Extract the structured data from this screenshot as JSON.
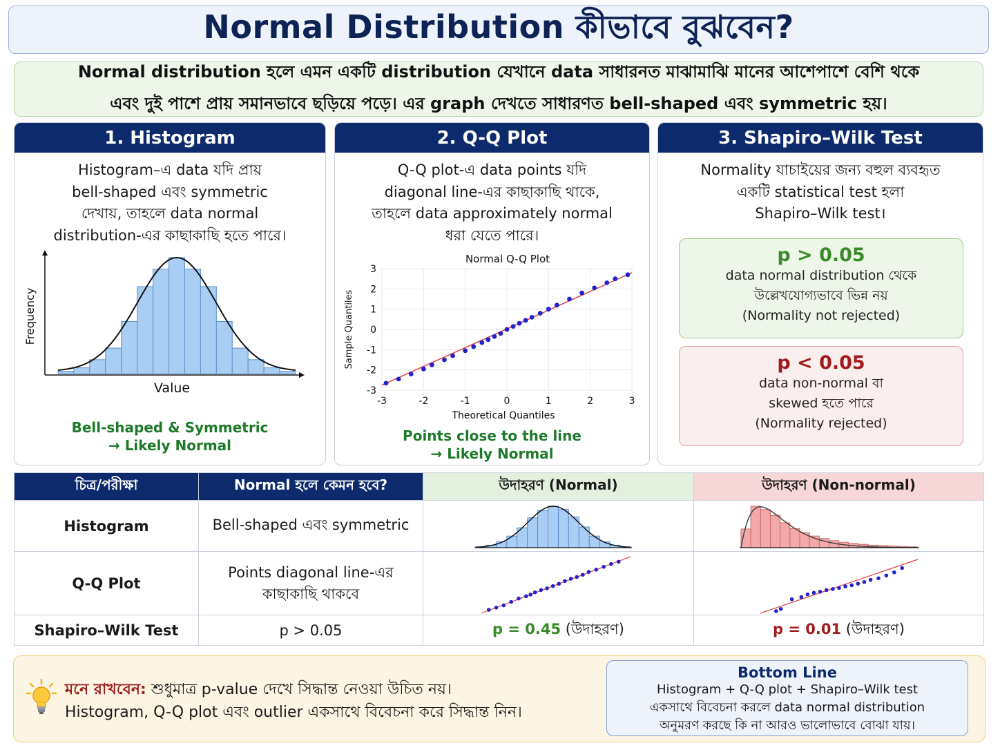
{
  "title": "Normal Distribution কীভাবে বুঝবেন?",
  "intro": {
    "line1": "Normal distribution হলে এমন একটি distribution যেখানে data সাধারনত মাঝামাঝি মানের আশেপাশে বেশি থকে",
    "line2": "এবং দুই পাশে প্রায় সমানভাবে ছড়িয়ে পড়ে। এর graph দেখতে সাধারণত bell-shaped এবং symmetric হয়।"
  },
  "cards": {
    "histogram": {
      "title": "1. Histogram",
      "text": [
        "Histogram–এ data যদি প্রায়",
        "bell-shaped এবং symmetric",
        "দেখায়, তাহলে data normal",
        "distribution-এর কাছাকাছি হতে পারে।"
      ],
      "xlabel": "Value",
      "ylabel": "Frequency",
      "caption1": "Bell-shaped & Symmetric",
      "caption2": "→ Likely Normal"
    },
    "qq": {
      "title": "2. Q-Q Plot",
      "text": [
        "Q-Q plot-এ data points যদি",
        "diagonal line-এর কাছাকাছি থাকে,",
        "তাহলে data approximately normal",
        "ধরা যেতে পারে।"
      ],
      "caption1": "Points close to the line",
      "caption2": "→ Likely Normal"
    },
    "shapiro": {
      "title": "3. Shapiro–Wilk Test",
      "text": [
        "Normality যাচাইয়ের জন্য বহুল ব্যবহৃত",
        "একটি statistical test হলা",
        "Shapiro–Wilk test।"
      ],
      "p_high": {
        "title": "p > 0.05",
        "lines": [
          "data normal distribution থেকে",
          "উল্লেখযোগ্যভাবে ভিন্ন নয়",
          "(Normality not rejected)"
        ]
      },
      "p_low": {
        "title": "p < 0.05",
        "lines": [
          "data non-normal বা",
          "skewed হতে পারে",
          "(Normality rejected)"
        ]
      }
    }
  },
  "table": {
    "headers": [
      "চিত্র/পরীক্ষা",
      "Normal হলে কেমন হবে?",
      "উদাহরণ (Normal)",
      "উদাহরণ (Non-normal)"
    ],
    "rows": [
      {
        "name": "Histogram",
        "normal": "Bell-shaped এবং symmetric"
      },
      {
        "name": "Q-Q Plot",
        "normal_line1": "Points diagonal line-এর",
        "normal_line2": "কাছাকাছি থাকবে"
      },
      {
        "name": "Shapiro–Wilk Test",
        "normal": "p > 0.05",
        "ex_normal_p": "p = 0.45",
        "ex_normal_suffix": " (উদাহরণ)",
        "ex_non_p": "p = 0.01",
        "ex_non_suffix": " (উদাহরণ)"
      }
    ]
  },
  "bottom": {
    "remember_label": "মনে রাখবেন:",
    "remember_text1": " শুধুমাত্র p-value দেখে সিদ্ধান্ত নেওয়া উচিত নয়।",
    "remember_text2": "Histogram, Q-Q plot এবং outlier একসাথে বিবেচনা করে সিদ্ধান্ত নিন।",
    "bottom_line_title": "Bottom Line",
    "bottom_line_lines": [
      "Histogram + Q-Q plot + Shapiro–Wilk test",
      "একসাথে বিবেচনা করলে data normal distribution",
      "অনুমরণ করছে কি না আরও ভালোভাবে বোঝা যায়।"
    ]
  },
  "colors": {
    "navy": "#0d2a6c",
    "green_text": "#1e7a2a",
    "red_text": "#a01c1c",
    "hist_blue": "#a9cdf3",
    "hist_red": "#f3a9a9",
    "qq_point": "#2222cc",
    "qq_line": "#e04040"
  },
  "chart_data": [
    {
      "type": "bar",
      "name": "histogram-normal",
      "title": "",
      "xlabel": "Value",
      "ylabel": "Frequency",
      "values": [
        2,
        5,
        12,
        22,
        45,
        75,
        90,
        100,
        90,
        75,
        45,
        22,
        12,
        5,
        2
      ],
      "overlay": "normal-curve"
    },
    {
      "type": "scatter",
      "name": "qq-normal",
      "title": "Normal Q-Q Plot",
      "xlabel": "Theoretical Quantiles",
      "ylabel": "Sample Quantiles",
      "xlim": [
        -3,
        3
      ],
      "ylim": [
        -3,
        3
      ],
      "xticks": [
        -3,
        -2,
        -1,
        0,
        1,
        2,
        3
      ],
      "yticks": [
        -3,
        -2,
        -1,
        0,
        1,
        2,
        3
      ],
      "x": [
        -2.9,
        -2.6,
        -2.3,
        -2.0,
        -1.8,
        -1.5,
        -1.3,
        -1.0,
        -0.8,
        -0.6,
        -0.45,
        -0.3,
        -0.15,
        0.0,
        0.15,
        0.3,
        0.45,
        0.6,
        0.8,
        1.0,
        1.2,
        1.5,
        1.8,
        2.1,
        2.4,
        2.6,
        2.9
      ],
      "y": [
        -2.65,
        -2.45,
        -2.2,
        -1.95,
        -1.75,
        -1.5,
        -1.3,
        -1.05,
        -0.85,
        -0.65,
        -0.5,
        -0.35,
        -0.2,
        0.0,
        0.15,
        0.3,
        0.45,
        0.6,
        0.8,
        1.0,
        1.2,
        1.5,
        1.8,
        2.05,
        2.3,
        2.5,
        2.7
      ],
      "reference_line": [
        [
          -3,
          -2.75
        ],
        [
          3,
          2.8
        ]
      ]
    },
    {
      "type": "bar",
      "name": "histogram-normal-small",
      "values": [
        2,
        6,
        14,
        28,
        48,
        72,
        90,
        100,
        92,
        74,
        50,
        28,
        14,
        6,
        2
      ],
      "overlay": "normal-curve"
    },
    {
      "type": "bar",
      "name": "histogram-skewed-small",
      "values": [
        45,
        100,
        92,
        78,
        60,
        46,
        36,
        28,
        22,
        17,
        13,
        10,
        8,
        6,
        5,
        4,
        3,
        2
      ],
      "overlay": "skewed-curve"
    },
    {
      "type": "scatter",
      "name": "qq-normal-small",
      "x": [
        0.05,
        0.1,
        0.15,
        0.2,
        0.25,
        0.3,
        0.33,
        0.36,
        0.4,
        0.44,
        0.48,
        0.52,
        0.56,
        0.6,
        0.64,
        0.68,
        0.72,
        0.77,
        0.82,
        0.87,
        0.92
      ],
      "y": [
        0.06,
        0.1,
        0.14,
        0.2,
        0.26,
        0.3,
        0.33,
        0.37,
        0.41,
        0.44,
        0.48,
        0.52,
        0.57,
        0.61,
        0.64,
        0.68,
        0.73,
        0.77,
        0.82,
        0.87,
        0.91
      ]
    },
    {
      "type": "scatter",
      "name": "qq-skewed-small",
      "x": [
        0.1,
        0.13,
        0.2,
        0.26,
        0.3,
        0.34,
        0.38,
        0.42,
        0.46,
        0.5,
        0.54,
        0.58,
        0.62,
        0.66,
        0.7,
        0.75,
        0.8,
        0.85,
        0.9
      ],
      "y": [
        0.04,
        0.08,
        0.26,
        0.3,
        0.35,
        0.38,
        0.4,
        0.43,
        0.45,
        0.47,
        0.5,
        0.52,
        0.55,
        0.58,
        0.62,
        0.65,
        0.7,
        0.76,
        0.84
      ]
    }
  ]
}
